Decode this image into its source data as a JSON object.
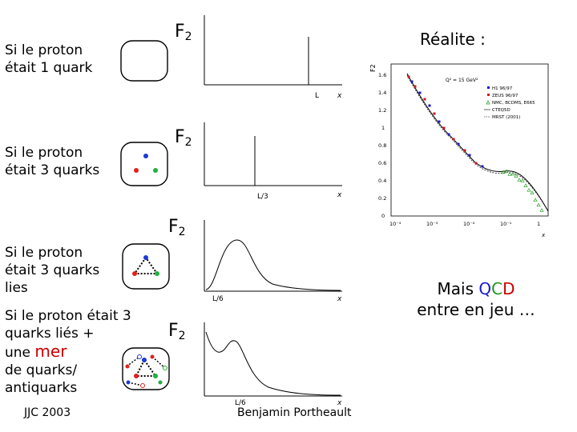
{
  "rows": [
    {
      "label": "Si le proton\nétait 1 quark",
      "f2": "F",
      "f2_sub": "2",
      "tick": "L"
    },
    {
      "label": "Si le proton\nétait 3 quarks",
      "f2": "F",
      "f2_sub": "2",
      "tick": "L/3"
    },
    {
      "label": "Si le proton\nétait 3 quarks\nlies",
      "f2": "F",
      "f2_sub": "2",
      "tick": "L/6"
    },
    {
      "label_a": "Si le proton était 3\nquarks liés +",
      "label_b": "une ",
      "label_mer": "mer",
      "label_c": "de quarks/\nantiquarks",
      "f2": "F",
      "f2_sub": "2",
      "tick": "L/6"
    }
  ],
  "axis_x": "x",
  "realite": "Réalite :",
  "mais": "Mais ",
  "qcd_q": "Q",
  "qcd_c": "C",
  "qcd_d": "D",
  "entre": "entre en jeu …",
  "footer_left": "JJC 2003",
  "footer_right": "Benjamin Portheault",
  "inset": {
    "ylabel": "F2",
    "q2": "Q² = 15 GeV²",
    "y_ticks": [
      "1.6",
      "1.4",
      "1.2",
      "1",
      "0.8",
      "0.6",
      "0.4",
      "0.2",
      "0"
    ],
    "x_ticks": [
      "10⁻⁴",
      "10⁻³",
      "10⁻²",
      "10⁻¹",
      "1"
    ],
    "xlabel": "x",
    "legend": [
      "H1 96/97",
      "ZEUS 96/97",
      "NMC, BCDMS, E665",
      "CTEQ5D",
      "MRST (2001)"
    ],
    "colors": {
      "h1": "#1a1acc",
      "zeus": "#cc1a1a",
      "nmc": "#2aa02a"
    }
  },
  "dot_colors": {
    "blue": "#1a3ad0",
    "red": "#e02020",
    "green": "#20b040"
  }
}
